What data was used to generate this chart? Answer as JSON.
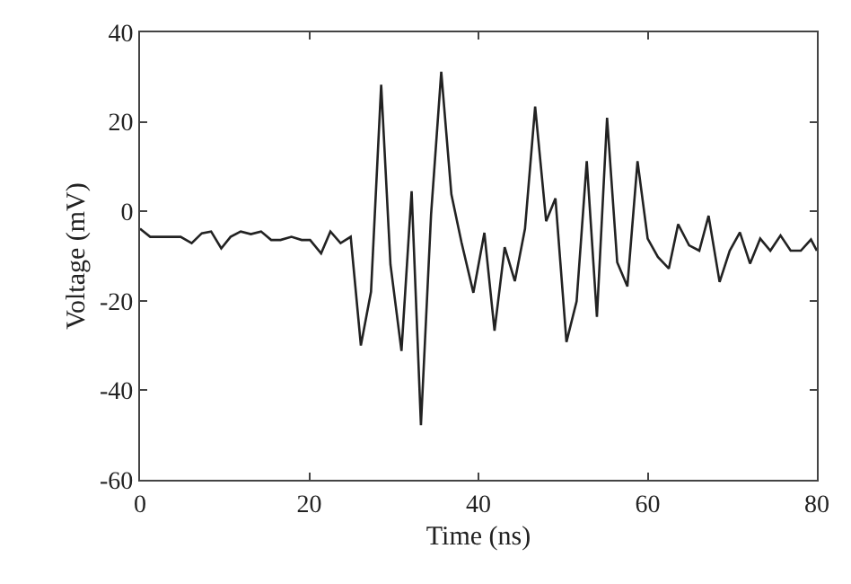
{
  "chart_data": {
    "type": "line",
    "xlabel": "Time (ns)",
    "ylabel": "Voltage (mV)",
    "xlim": [
      0,
      80
    ],
    "xticks": [
      0,
      20,
      40,
      60,
      80
    ],
    "ylim": [
      -60,
      40
    ],
    "yticks": [
      -60,
      -40,
      -20,
      0,
      20,
      40
    ],
    "grid": false,
    "marker": "none",
    "line_style": "solid",
    "series": [
      {
        "color": "#222222",
        "x": [
          0,
          1.2,
          2.4,
          3.6,
          4.8,
          6.1,
          7.3,
          8.4,
          9.6,
          10.7,
          11.9,
          13.1,
          14.3,
          15.5,
          16.6,
          17.9,
          19.1,
          20.1,
          21.4,
          22.5,
          23.7,
          24.9,
          26.1,
          27.3,
          28.5,
          29.6,
          30.9,
          32.1,
          33.2,
          34.4,
          35.6,
          36.8,
          38.0,
          39.4,
          40.7,
          41.9,
          43.1,
          44.3,
          45.5,
          46.7,
          48.0,
          49.1,
          50.4,
          51.6,
          52.8,
          54.0,
          55.2,
          56.4,
          57.6,
          58.8,
          60.0,
          61.2,
          62.5,
          63.6,
          64.9,
          66.1,
          67.2,
          68.5,
          69.7,
          70.9,
          72.1,
          73.3,
          74.5,
          75.7,
          76.9,
          78.1,
          79.3,
          80
        ],
        "values": [
          -3.9,
          -5.7,
          -5.7,
          -5.7,
          -5.7,
          -7.1,
          -4.9,
          -4.5,
          -8.3,
          -5.7,
          -4.5,
          -5.1,
          -4.5,
          -6.4,
          -6.4,
          -5.7,
          -6.4,
          -6.4,
          -9.4,
          -4.5,
          -7.1,
          -5.7,
          -30,
          -18,
          28.3,
          -11.9,
          -31.2,
          4.5,
          -47.8,
          -0.7,
          31.2,
          3.8,
          -7,
          -18.2,
          -4.8,
          -26.7,
          -8,
          -15.6,
          -3.9,
          23.4,
          -2.2,
          2.9,
          -29.2,
          -20.1,
          11.2,
          -23.6,
          20.9,
          -11.4,
          -16.8,
          11.2,
          -6.1,
          -10.2,
          -12.8,
          -2.9,
          -7.6,
          -8.8,
          -1,
          -15.8,
          -8.8,
          -4.7,
          -11.7,
          -6.1,
          -8.8,
          -5.4,
          -8.8,
          -8.8,
          -6.3,
          -8.8
        ]
      }
    ]
  }
}
